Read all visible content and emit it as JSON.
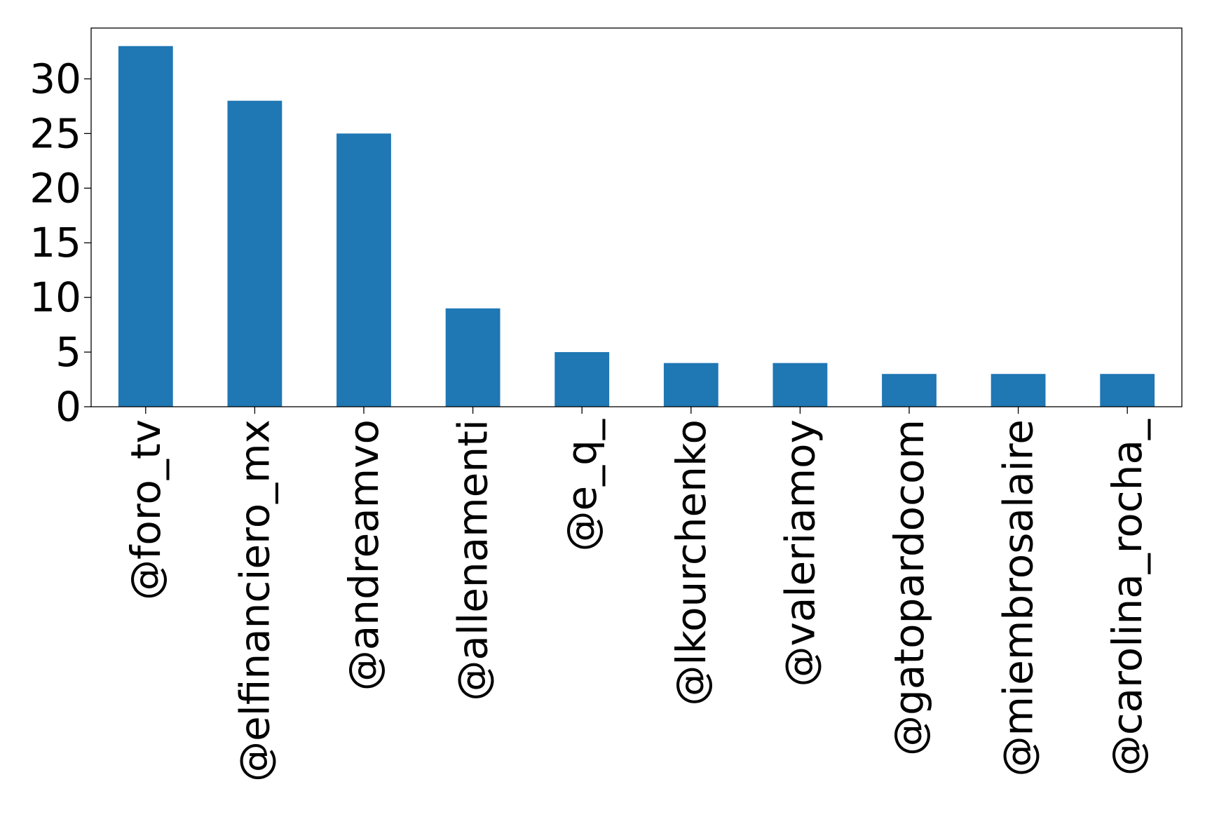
{
  "chart_data": {
    "type": "bar",
    "title": "",
    "xlabel": "",
    "ylabel": "",
    "categories": [
      "@foro_tv",
      "@elfinanciero_mx",
      "@andreamvo",
      "@allenamenti",
      "@e_q_",
      "@lkourchenko",
      "@valeriamoy",
      "@gatopardocom",
      "@miembrosalaire",
      "@carolina_rocha_"
    ],
    "values": [
      33,
      28,
      25,
      9,
      5,
      4,
      4,
      3,
      3,
      3
    ],
    "ylim": [
      0,
      34.65
    ],
    "yticks": [
      0,
      5,
      10,
      15,
      20,
      25,
      30
    ],
    "bar_color": "#1f77b4",
    "grid": false,
    "legend": "none"
  }
}
